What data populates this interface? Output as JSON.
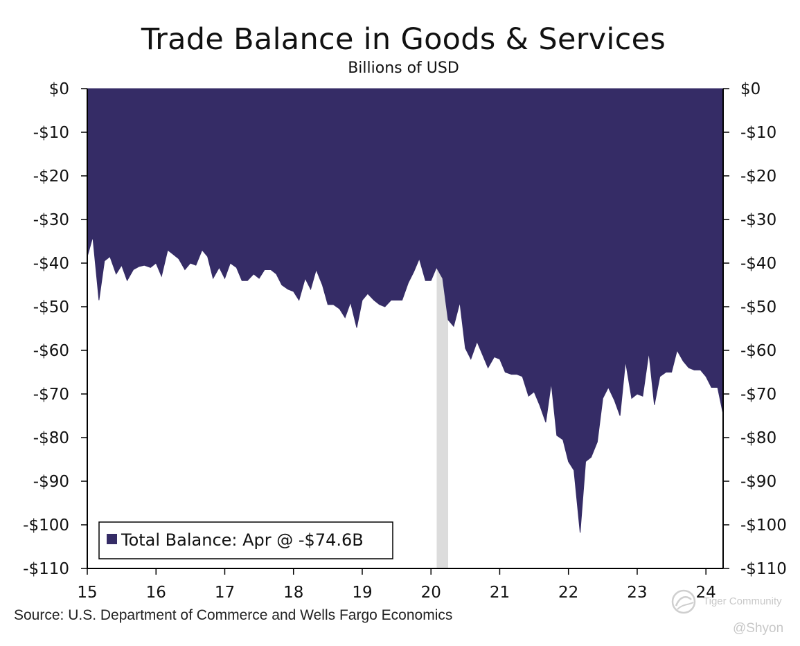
{
  "chart_data": {
    "type": "area",
    "title": "Trade Balance in Goods & Services",
    "subtitle": "Billions of USD",
    "x_range": [
      2015.0,
      2024.25
    ],
    "ylim": [
      -110,
      0
    ],
    "y_ticks": [
      0,
      -10,
      -20,
      -30,
      -40,
      -50,
      -60,
      -70,
      -80,
      -90,
      -100,
      -110
    ],
    "y_tick_labels": [
      "$0",
      "-$10",
      "-$20",
      "-$30",
      "-$40",
      "-$50",
      "-$60",
      "-$70",
      "-$80",
      "-$90",
      "-$100",
      "-$110"
    ],
    "x_ticks": [
      2015,
      2016,
      2017,
      2018,
      2019,
      2020,
      2021,
      2022,
      2023,
      2024
    ],
    "x_tick_labels": [
      "15",
      "16",
      "17",
      "18",
      "19",
      "20",
      "21",
      "22",
      "23",
      "24"
    ],
    "recession_band": [
      2020.083,
      2020.25
    ],
    "grid": false,
    "legend": {
      "label": "Total Balance: Apr @ -$74.6B",
      "placement": "bottom-left"
    },
    "series": [
      {
        "name": "Total Balance",
        "color": "#352c66",
        "x": [
          2015.0,
          2015.08,
          2015.17,
          2015.25,
          2015.33,
          2015.42,
          2015.5,
          2015.58,
          2015.67,
          2015.75,
          2015.83,
          2015.92,
          2016.0,
          2016.08,
          2016.17,
          2016.25,
          2016.33,
          2016.42,
          2016.5,
          2016.58,
          2016.67,
          2016.75,
          2016.83,
          2016.92,
          2017.0,
          2017.08,
          2017.17,
          2017.25,
          2017.33,
          2017.42,
          2017.5,
          2017.58,
          2017.67,
          2017.75,
          2017.83,
          2017.92,
          2018.0,
          2018.08,
          2018.17,
          2018.25,
          2018.33,
          2018.42,
          2018.5,
          2018.58,
          2018.67,
          2018.75,
          2018.83,
          2018.92,
          2019.0,
          2019.08,
          2019.17,
          2019.25,
          2019.33,
          2019.42,
          2019.5,
          2019.58,
          2019.67,
          2019.75,
          2019.83,
          2019.92,
          2020.0,
          2020.08,
          2020.17,
          2020.25,
          2020.33,
          2020.42,
          2020.5,
          2020.58,
          2020.67,
          2020.75,
          2020.83,
          2020.92,
          2021.0,
          2021.08,
          2021.17,
          2021.25,
          2021.33,
          2021.42,
          2021.5,
          2021.58,
          2021.67,
          2021.75,
          2021.83,
          2021.92,
          2022.0,
          2022.08,
          2022.17,
          2022.25,
          2022.33,
          2022.42,
          2022.5,
          2022.58,
          2022.67,
          2022.75,
          2022.83,
          2022.92,
          2023.0,
          2023.08,
          2023.17,
          2023.25,
          2023.33,
          2023.42,
          2023.5,
          2023.58,
          2023.67,
          2023.75,
          2023.83,
          2023.92,
          2024.0,
          2024.08,
          2024.17,
          2024.25
        ],
        "values": [
          -38.5,
          -34.0,
          -48.5,
          -39.5,
          -38.5,
          -42.5,
          -40.5,
          -44.0,
          -41.5,
          -40.8,
          -40.5,
          -41.0,
          -40.0,
          -43.0,
          -37.0,
          -38.0,
          -39.0,
          -41.5,
          -40.0,
          -40.5,
          -37.0,
          -38.5,
          -43.5,
          -41.0,
          -43.5,
          -40.0,
          -41.0,
          -44.0,
          -44.0,
          -42.5,
          -43.5,
          -41.5,
          -41.5,
          -42.5,
          -45.0,
          -46.0,
          -46.5,
          -48.5,
          -43.5,
          -46.0,
          -41.5,
          -45.0,
          -49.5,
          -49.5,
          -50.5,
          -52.5,
          -49.0,
          -54.8,
          -48.5,
          -47.0,
          -48.5,
          -49.5,
          -50.0,
          -48.5,
          -48.5,
          -48.5,
          -44.5,
          -42.0,
          -39.0,
          -44.0,
          -44.0,
          -41.0,
          -43.5,
          -53.0,
          -54.5,
          -49.0,
          -59.5,
          -62.0,
          -58.0,
          -61.0,
          -64.0,
          -61.5,
          -62.0,
          -65.0,
          -65.5,
          -65.5,
          -66.0,
          -70.5,
          -69.5,
          -72.5,
          -76.5,
          -67.5,
          -79.5,
          -80.5,
          -85.5,
          -87.5,
          -101.8,
          -85.5,
          -84.5,
          -81.0,
          -71.0,
          -68.5,
          -71.5,
          -75.0,
          -62.5,
          -71.0,
          -70.0,
          -70.5,
          -60.5,
          -72.5,
          -66.0,
          -65.0,
          -65.0,
          -60.0,
          -62.5,
          -64.0,
          -64.5,
          -64.5,
          -66.0,
          -68.5,
          -68.5,
          -74.6
        ]
      }
    ]
  },
  "footer": {
    "source": "Source: U.S. Department of Commerce and Wells Fargo Economics"
  },
  "watermark": {
    "line1": "Tiger Community",
    "line2": "@Shyon",
    "logo_icon": "tiger-community-logo-icon"
  }
}
